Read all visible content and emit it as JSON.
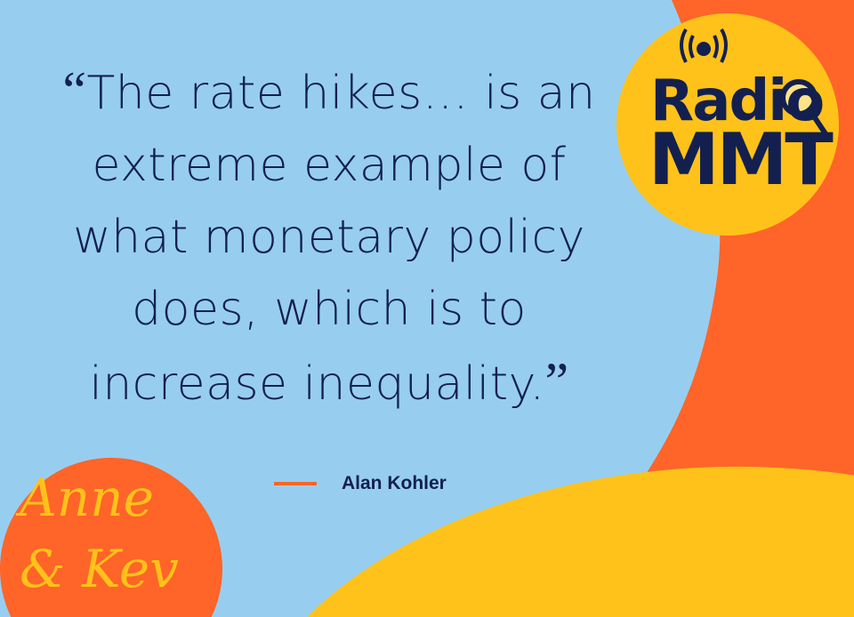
{
  "quote": {
    "open_mark": "“",
    "close_mark": "”",
    "lines": [
      "The rate hikes… is an",
      "extreme example of",
      "what monetary policy",
      "does, which is to",
      "increase inequality."
    ]
  },
  "author": "Alan Kohler",
  "logos": {
    "radio_mmt": {
      "line1": "Radio",
      "line2": "MMT"
    },
    "anne_kev": {
      "line1": "Anne",
      "line2": "& Kev"
    }
  },
  "colors": {
    "background_blue": "#97CEF0",
    "orange": "#FF6428",
    "yellow": "#FFC21A",
    "text_navy": "#13204F"
  }
}
